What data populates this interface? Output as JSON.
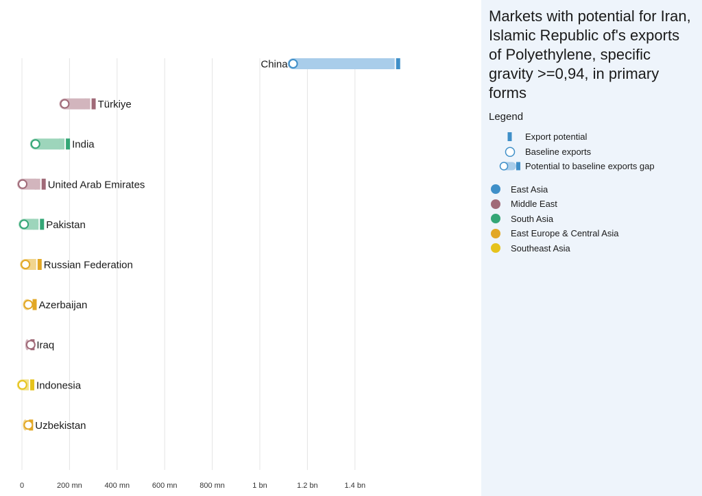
{
  "panel": {
    "title": "Markets with potential for Iran, Islamic Republic of's exports of Polyethylene, specific gravity >=0,94, in primary forms",
    "legend_heading": "Legend",
    "symbol_legend": [
      {
        "name": "export-potential",
        "label": "Export potential"
      },
      {
        "name": "baseline-exports",
        "label": "Baseline exports"
      },
      {
        "name": "gap",
        "label": "Potential to baseline exports gap"
      }
    ],
    "region_legend": [
      {
        "label": "East Asia",
        "color": "#3f8fc8"
      },
      {
        "label": "Middle East",
        "color": "#a06a78"
      },
      {
        "label": "South Asia",
        "color": "#34a676"
      },
      {
        "label": "East Europe & Central Asia",
        "color": "#e2a725"
      },
      {
        "label": "Southeast Asia",
        "color": "#e6c31c"
      }
    ]
  },
  "chart_data": {
    "type": "dumbbell",
    "title": "",
    "xlabel": "",
    "ylabel": "",
    "x_range": [
      0,
      1600000000
    ],
    "x_ticks": [
      {
        "value": 0,
        "label": "0"
      },
      {
        "value": 200000000,
        "label": "200 mn"
      },
      {
        "value": 400000000,
        "label": "400 mn"
      },
      {
        "value": 600000000,
        "label": "600 mn"
      },
      {
        "value": 800000000,
        "label": "800 mn"
      },
      {
        "value": 1000000000,
        "label": "1 bn"
      },
      {
        "value": 1200000000,
        "label": "1.2 bn"
      },
      {
        "value": 1400000000,
        "label": "1.4 bn"
      }
    ],
    "grid": true,
    "legend_position": "right",
    "markets": [
      {
        "name": "China",
        "region": "East Asia",
        "baseline": 1140000000,
        "potential": 1590000000
      },
      {
        "name": "Türkiye",
        "region": "Middle East",
        "baseline": 180000000,
        "potential": 310000000
      },
      {
        "name": "India",
        "region": "South Asia",
        "baseline": 57000000,
        "potential": 202000000
      },
      {
        "name": "United Arab Emirates",
        "region": "Middle East",
        "baseline": 3000000,
        "potential": 100000000
      },
      {
        "name": "Pakistan",
        "region": "South Asia",
        "baseline": 9000000,
        "potential": 93000000
      },
      {
        "name": "Russian Federation",
        "region": "East Europe & Central Asia",
        "baseline": 15000000,
        "potential": 83000000
      },
      {
        "name": "Azerbaijan",
        "region": "East Europe & Central Asia",
        "baseline": 27000000,
        "potential": 62000000
      },
      {
        "name": "Iraq",
        "region": "Middle East",
        "baseline": 37000000,
        "potential": 53000000
      },
      {
        "name": "Indonesia",
        "region": "Southeast Asia",
        "baseline": 2000000,
        "potential": 52000000
      },
      {
        "name": "Uzbekistan",
        "region": "East Europe & Central Asia",
        "baseline": 27000000,
        "potential": 47000000
      }
    ]
  }
}
